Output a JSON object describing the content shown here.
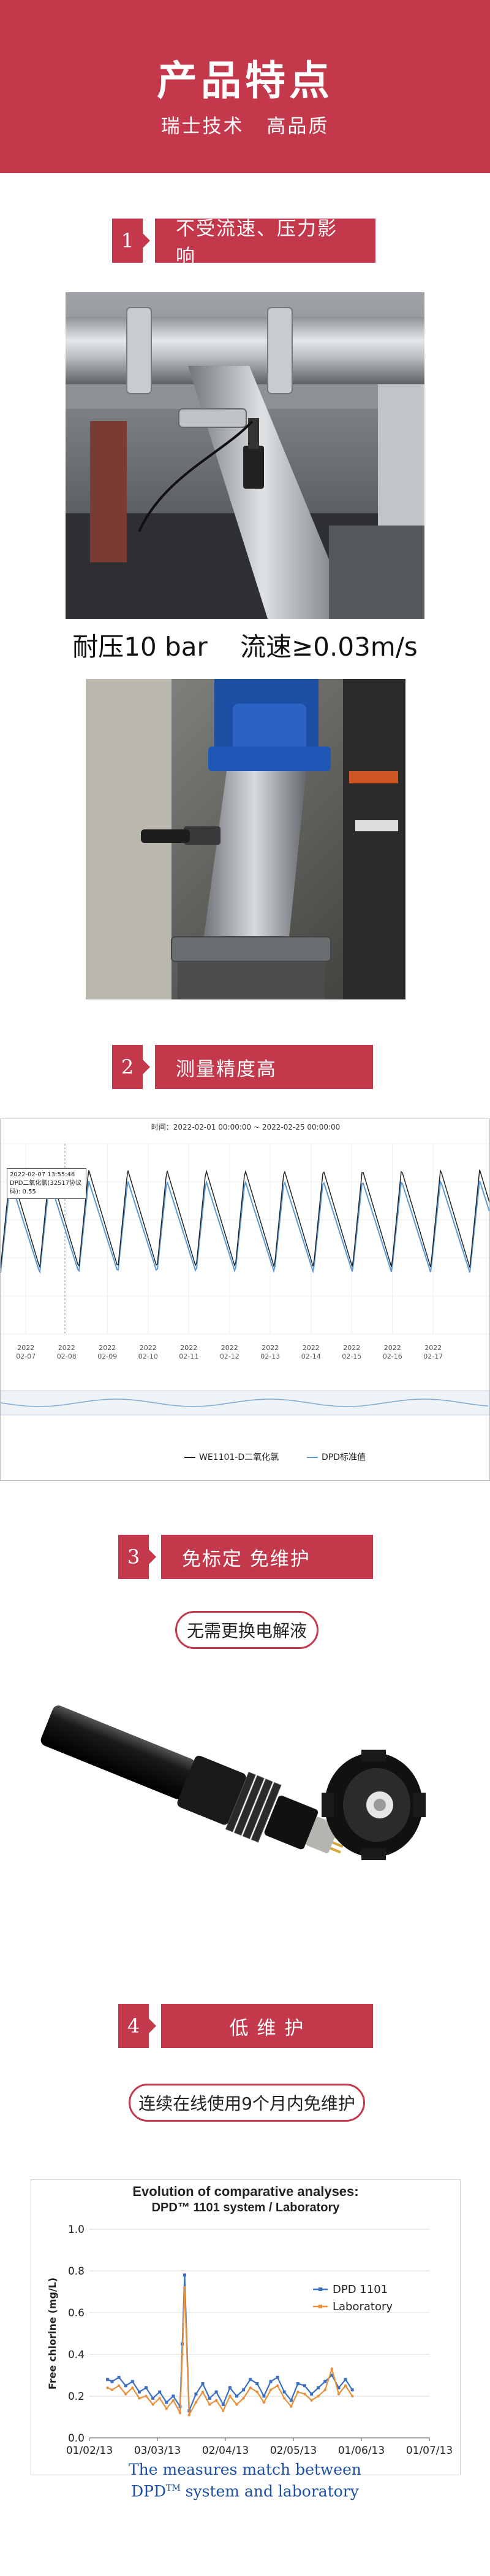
{
  "header": {
    "title": "产品特点",
    "subtitle_left": "瑞士技术",
    "subtitle_right": "高品质"
  },
  "sections": [
    {
      "number": "1",
      "label": "不受流速、压力影响"
    },
    {
      "number": "2",
      "label": "测量精度高"
    },
    {
      "number": "3",
      "label": "免标定 免维护"
    },
    {
      "number": "4",
      "label": "低 维 护"
    }
  ],
  "spec": {
    "pressure": "耐压10 bar",
    "flow": "流速≥0.03m/s"
  },
  "capsules": {
    "no_electrolyte": "无需更换电解液",
    "maintenance": "连续在线使用9个月内免维护"
  },
  "chart1": {
    "time_range": "时间：2022-02-01 00:00:00 ~ 2022-02-25 00:00:00",
    "tooltip_time": "2022-02-07 13:55:46",
    "tooltip_value": "DPD二氧化氯(32517协议码): 0.55",
    "date_year": "2022",
    "date_labels": [
      "02-07",
      "02-08",
      "02-09",
      "02-10",
      "02-11",
      "02-12",
      "02-13",
      "02-14",
      "02-15",
      "02-16",
      "02-17"
    ],
    "legend_a": "WE1101-D二氧化氯",
    "legend_b": "DPD标准值",
    "colors": {
      "series_a": "#222222",
      "series_b": "#5a9ad6"
    }
  },
  "chart_data": {
    "type": "line",
    "title": "Evolution of comparative analyses:",
    "subtitle": "DPD™ 1101 system / Laboratory",
    "ylabel": "Free chlorine (mg/L)",
    "xlabel": "",
    "ylim": [
      0,
      1.0
    ],
    "yticks": [
      "0.0",
      "0.2",
      "0.4",
      "0.6",
      "0.8",
      "1.0"
    ],
    "xticks": [
      "01/02/13",
      "03/03/13",
      "02/04/13",
      "02/05/13",
      "01/06/13",
      "01/07/13"
    ],
    "legend_position": "right",
    "series": [
      {
        "name": "DPD 1101",
        "color": "#3a6fc4",
        "x": [
          8,
          10,
          13,
          16,
          19,
          22,
          25,
          28,
          31,
          34,
          37,
          40,
          41,
          42,
          44,
          47,
          50,
          53,
          56,
          59,
          62,
          65,
          68,
          71,
          74,
          77,
          80,
          83,
          86,
          89,
          92,
          95,
          98,
          101,
          104,
          107,
          110,
          113,
          116
        ],
        "values": [
          0.28,
          0.27,
          0.29,
          0.25,
          0.27,
          0.22,
          0.24,
          0.19,
          0.22,
          0.17,
          0.2,
          0.15,
          0.45,
          0.78,
          0.13,
          0.21,
          0.26,
          0.19,
          0.22,
          0.16,
          0.24,
          0.2,
          0.23,
          0.28,
          0.26,
          0.2,
          0.27,
          0.29,
          0.22,
          0.18,
          0.26,
          0.25,
          0.21,
          0.24,
          0.27,
          0.3,
          0.24,
          0.28,
          0.23
        ]
      },
      {
        "name": "Laboratory",
        "color": "#e8913a",
        "x": [
          8,
          10,
          13,
          16,
          19,
          22,
          25,
          28,
          31,
          34,
          37,
          40,
          41,
          42,
          44,
          47,
          50,
          53,
          56,
          59,
          62,
          65,
          68,
          71,
          74,
          77,
          80,
          83,
          86,
          89,
          92,
          95,
          98,
          101,
          104,
          107,
          110,
          113,
          116
        ],
        "values": [
          0.24,
          0.23,
          0.25,
          0.21,
          0.24,
          0.19,
          0.2,
          0.16,
          0.19,
          0.14,
          0.18,
          0.12,
          0.4,
          0.72,
          0.11,
          0.17,
          0.22,
          0.16,
          0.18,
          0.13,
          0.2,
          0.16,
          0.19,
          0.24,
          0.22,
          0.17,
          0.23,
          0.25,
          0.19,
          0.15,
          0.22,
          0.21,
          0.18,
          0.2,
          0.23,
          0.33,
          0.21,
          0.25,
          0.2
        ]
      }
    ]
  },
  "caption": {
    "line1": "The measures match between",
    "line2_a": "DPD",
    "line2_sup": "TM",
    "line2_b": " system and laboratory"
  }
}
